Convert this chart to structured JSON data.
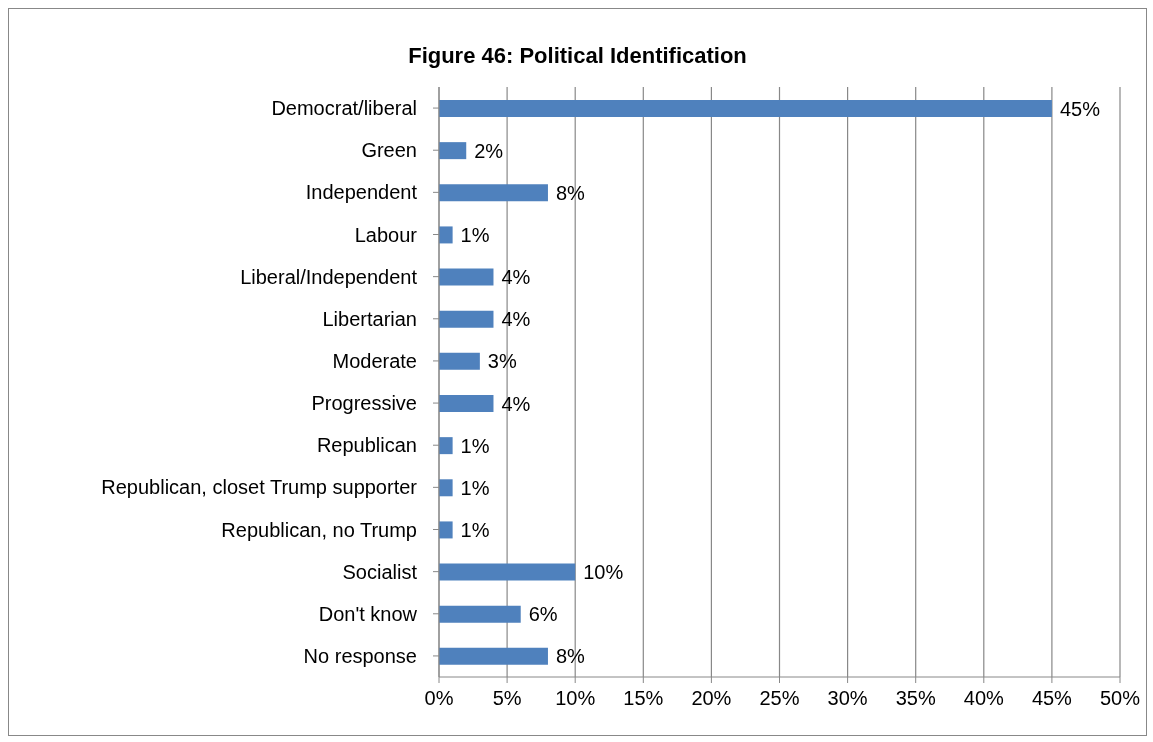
{
  "chart_data": {
    "type": "bar",
    "orientation": "horizontal",
    "title": "Figure 46: Political Identification",
    "categories": [
      "Democrat/liberal",
      "Green",
      "Independent",
      "Labour",
      "Liberal/Independent",
      "Libertarian",
      "Moderate",
      "Progressive",
      "Republican",
      "Republican, closet Trump supporter",
      "Republican, no Trump",
      "Socialist",
      "Don't know",
      "No response"
    ],
    "values": [
      45,
      2,
      8,
      1,
      4,
      4,
      3,
      4,
      1,
      1,
      1,
      10,
      6,
      8
    ],
    "value_labels": [
      "45%",
      "2%",
      "8%",
      "1%",
      "4%",
      "4%",
      "3%",
      "4%",
      "1%",
      "1%",
      "1%",
      "10%",
      "6%",
      "8%"
    ],
    "color": "#4f81bd",
    "xlim": [
      0,
      50
    ],
    "xticks": [
      {
        "value": 0,
        "label": "0%"
      },
      {
        "value": 5,
        "label": "5%"
      },
      {
        "value": 10,
        "label": "10%"
      },
      {
        "value": 15,
        "label": "15%"
      },
      {
        "value": 20,
        "label": "20%"
      },
      {
        "value": 25,
        "label": "25%"
      },
      {
        "value": 30,
        "label": "30%"
      },
      {
        "value": 35,
        "label": "35%"
      },
      {
        "value": 40,
        "label": "40%"
      },
      {
        "value": 45,
        "label": "45%"
      },
      {
        "value": 50,
        "label": "50%"
      }
    ],
    "grid": "x"
  }
}
